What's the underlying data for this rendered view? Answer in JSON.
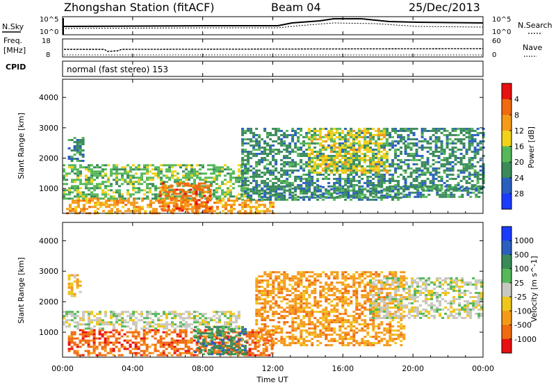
{
  "header": {
    "station": "Zhongshan Station (fitACF)",
    "beam": "Beam 04",
    "date": "25/Dec/2013"
  },
  "top_panels": {
    "nsky_label": "N.Sky",
    "nsearch_label": "N.Search",
    "nsky_ticks": [
      "10^5",
      "10^0"
    ],
    "nsearch_ticks": [
      "10^5",
      "10^0"
    ],
    "freq_label": "Freq.",
    "freq_unit": "[MHz]",
    "freq_ticks": [
      "18",
      "8"
    ],
    "nave_label": "Nave",
    "nave_ticks": [
      "60",
      "0"
    ],
    "cpid_label": "CPID",
    "cpid_text": "normal (fast stereo) 153"
  },
  "colors": {
    "power_scale": [
      "#1a3cff",
      "#2a5fc0",
      "#3a8a5a",
      "#56b85a",
      "#f0d21a",
      "#f59a18",
      "#f06a10",
      "#e81010"
    ],
    "velocity_scale": [
      "#e81010",
      "#f06a10",
      "#f59a18",
      "#f0c61a",
      "#c8c8c0",
      "#56b85a",
      "#3a8a5a",
      "#2a5fc0",
      "#1a3cff"
    ]
  },
  "chart_data": [
    {
      "type": "heatmap",
      "name": "power",
      "ylabel": "Slant Range [km]",
      "yticks": [
        1000,
        2000,
        3000,
        4000
      ],
      "ylim": [
        180,
        4600
      ],
      "xlim_hours": [
        0,
        24
      ],
      "colorbar_label": "Power [dB]",
      "colorbar_ticks": [
        4,
        8,
        12,
        16,
        20,
        24,
        28
      ],
      "colorbar_range": [
        0,
        32
      ],
      "regions": [
        {
          "t0": 0.2,
          "t1": 12.0,
          "r0": 180,
          "r1": 700,
          "level": 20
        },
        {
          "t0": 0.0,
          "t1": 10.5,
          "r0": 700,
          "r1": 1800,
          "level": 12
        },
        {
          "t0": 5.5,
          "t1": 8.5,
          "r0": 180,
          "r1": 1200,
          "level": 27
        },
        {
          "t0": 0.3,
          "t1": 1.2,
          "r0": 1900,
          "r1": 2700,
          "level": 10
        },
        {
          "t0": 10.2,
          "t1": 19.5,
          "r0": 600,
          "r1": 3000,
          "level": 9
        },
        {
          "t0": 14.0,
          "t1": 18.5,
          "r0": 1500,
          "r1": 3000,
          "level": 17
        },
        {
          "t0": 19.5,
          "t1": 24.0,
          "r0": 1000,
          "r1": 3000,
          "level": 8
        },
        {
          "t0": 11.0,
          "t1": 24.0,
          "r0": 700,
          "r1": 1100,
          "level": 9
        }
      ]
    },
    {
      "type": "heatmap",
      "name": "velocity",
      "ylabel": "Slant Range [km]",
      "yticks": [
        1000,
        2000,
        3000,
        4000
      ],
      "ylim": [
        180,
        4600
      ],
      "xlim_hours": [
        0,
        24
      ],
      "xticks": [
        "00:00",
        "04:00",
        "08:00",
        "12:00",
        "16:00",
        "20:00",
        "00:00"
      ],
      "xlabel": "Time UT",
      "colorbar_label": "Velocity [m s^-1]",
      "colorbar_ticks": [
        "1000",
        "500",
        "100",
        "25",
        "-25",
        "-100",
        "-500",
        "-1000"
      ],
      "regions": [
        {
          "t0": 0.3,
          "t1": 12.0,
          "r0": 250,
          "r1": 1100,
          "level": 1
        },
        {
          "t0": 0.0,
          "t1": 10.0,
          "r0": 1100,
          "r1": 1700,
          "level": 4
        },
        {
          "t0": 7.5,
          "t1": 10.5,
          "r0": 250,
          "r1": 1200,
          "level": 6
        },
        {
          "t0": 11.0,
          "t1": 19.5,
          "r0": 600,
          "r1": 3000,
          "level": 2
        },
        {
          "t0": 17.5,
          "t1": 24.0,
          "r0": 1500,
          "r1": 2800,
          "level": 4
        },
        {
          "t0": 0.3,
          "t1": 1.0,
          "r0": 2200,
          "r1": 2900,
          "level": 3
        }
      ]
    }
  ]
}
